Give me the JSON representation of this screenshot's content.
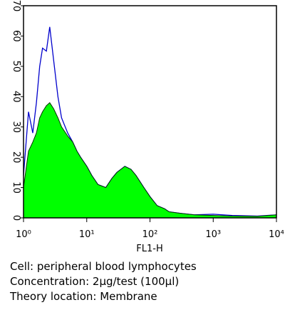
{
  "chart_data": {
    "type": "histogram-overlay",
    "xlabel": "FL1-H",
    "xscale": "log",
    "x": [
      1,
      1.2,
      1.4,
      1.6,
      1.8,
      2,
      2.3,
      2.6,
      3,
      3.5,
      4,
      5,
      6,
      7,
      8,
      10,
      12,
      15,
      20,
      25,
      30,
      40,
      50,
      60,
      80,
      100,
      130,
      170,
      200,
      300,
      500,
      1000,
      2000,
      5000,
      10000
    ],
    "series": [
      {
        "color": "#0000cc",
        "fill": false,
        "values": [
          14,
          35,
          28,
          38,
          50,
          56,
          55,
          63,
          52,
          40,
          33,
          28,
          25,
          22,
          20,
          17,
          14,
          11,
          10,
          13,
          15,
          17,
          16,
          14,
          10,
          7,
          4,
          3,
          2,
          1.5,
          1,
          1.2,
          0.8,
          0.6,
          1
        ]
      },
      {
        "color": "#00ff00",
        "fill": true,
        "values": [
          10,
          22,
          25,
          28,
          33,
          35,
          37,
          38,
          36,
          33,
          30,
          27,
          25,
          22,
          20,
          17,
          14,
          11,
          10,
          13,
          15,
          17,
          16,
          14,
          10,
          7,
          4,
          3,
          2,
          1.5,
          1,
          0.8,
          0.6,
          0.5,
          1
        ]
      }
    ],
    "xlim": [
      1,
      10000
    ],
    "xticks": [
      {
        "value": 1,
        "label": "10⁰"
      },
      {
        "value": 10,
        "label": "10¹"
      },
      {
        "value": 100,
        "label": "10²"
      },
      {
        "value": 1000,
        "label": "10³"
      },
      {
        "value": 10000,
        "label": "10⁴"
      }
    ],
    "ylim": [
      0,
      70
    ],
    "yticks": [
      0,
      10,
      20,
      30,
      40,
      50,
      60,
      70
    ],
    "caption": [
      "Cell: peripheral blood lymphocytes",
      "Concentration: 2μg/test (100μl)",
      "Theory location: Membrane"
    ]
  }
}
